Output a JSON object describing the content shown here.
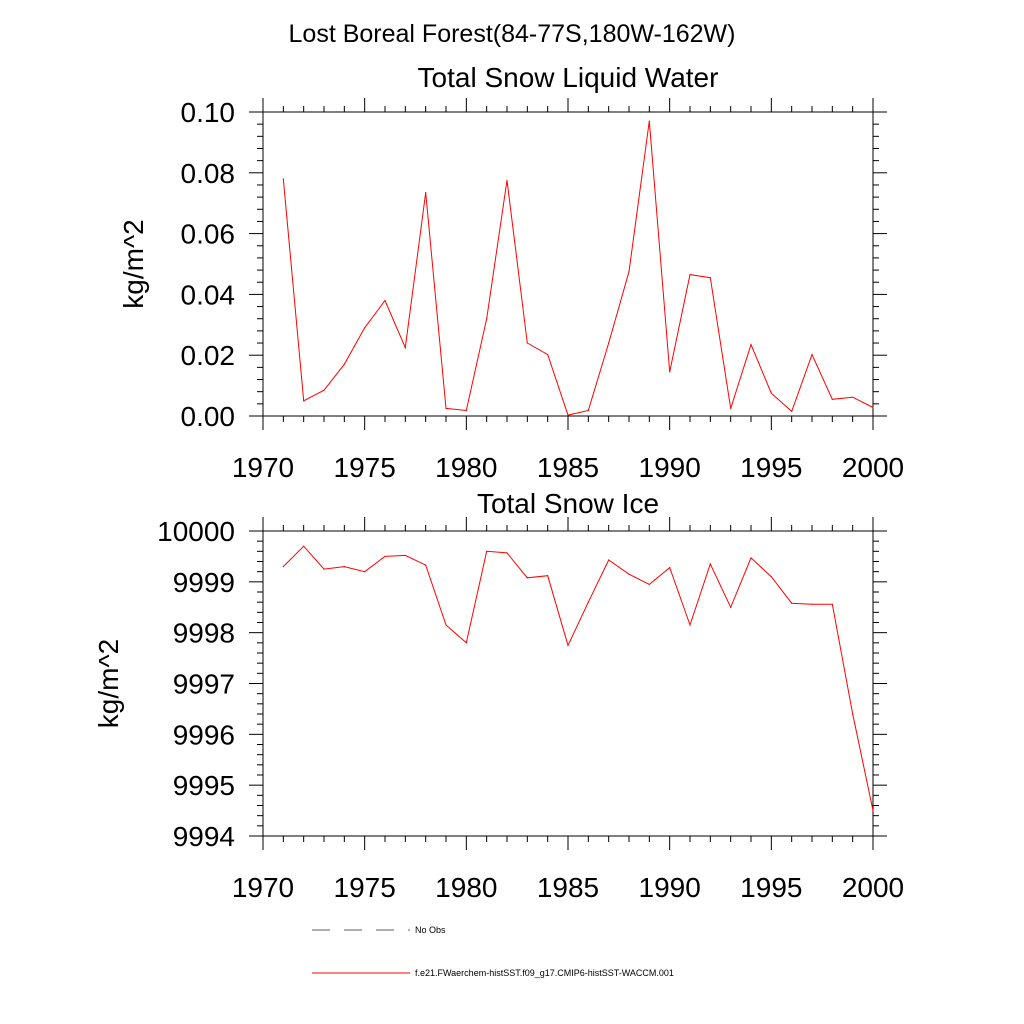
{
  "page_title": "Lost Boreal Forest(84-77S,180W-162W)",
  "legend": {
    "obs_label": "No Obs",
    "model_label": "f.e21.FWaerchem-histSST.f09_g17.CMIP6-histSST-WACCM.001"
  },
  "colors": {
    "model": "#ff0000",
    "obs": "#5a5a8a",
    "axis": "#000000"
  },
  "chart_data": [
    {
      "type": "line",
      "title": "Total Snow Liquid Water",
      "ylabel": "kg/m^2",
      "xlabel": "",
      "xlim": [
        1970,
        2000
      ],
      "ylim": [
        0,
        0.1
      ],
      "xticks": [
        1970,
        1975,
        1980,
        1985,
        1990,
        1995,
        2000
      ],
      "xtick_labels": [
        "1970",
        "1975",
        "1980",
        "1985",
        "1990",
        "1995",
        "2000"
      ],
      "yticks": [
        0,
        0.02,
        0.04,
        0.06,
        0.08,
        0.1
      ],
      "ytick_labels": [
        "0.00",
        "0.02",
        "0.04",
        "0.06",
        "0.08",
        "0.10"
      ],
      "grid": false,
      "series": [
        {
          "name": "f.e21.FWaerchem-histSST.f09_g17.CMIP6-histSST-WACCM.001",
          "x": [
            1971,
            1972,
            1973,
            1974,
            1975,
            1976,
            1977,
            1978,
            1979,
            1980,
            1981,
            1982,
            1983,
            1984,
            1985,
            1986,
            1987,
            1988,
            1989,
            1990,
            1991,
            1992,
            1993,
            1994,
            1995,
            1996,
            1997,
            1998,
            1999,
            2000
          ],
          "y": [
            0.078,
            0.005,
            0.0085,
            0.017,
            0.029,
            0.038,
            0.0225,
            0.0735,
            0.0025,
            0.0018,
            0.032,
            0.0775,
            0.024,
            0.0202,
            0.0003,
            0.0018,
            0.024,
            0.0475,
            0.097,
            0.0145,
            0.0465,
            0.0455,
            0.0025,
            0.0235,
            0.0075,
            0.0015,
            0.0202,
            0.0055,
            0.0062,
            0.0028
          ]
        }
      ]
    },
    {
      "type": "line",
      "title": "Total Snow Ice",
      "ylabel": "kg/m^2",
      "xlabel": "",
      "xlim": [
        1970,
        2000
      ],
      "ylim": [
        9994,
        10000
      ],
      "xticks": [
        1970,
        1975,
        1980,
        1985,
        1990,
        1995,
        2000
      ],
      "xtick_labels": [
        "1970",
        "1975",
        "1980",
        "1985",
        "1990",
        "1995",
        "2000"
      ],
      "yticks": [
        9994,
        9995,
        9996,
        9997,
        9998,
        9999,
        10000
      ],
      "ytick_labels": [
        "9994",
        "9995",
        "9996",
        "9997",
        "9998",
        "9999",
        "10000"
      ],
      "grid": false,
      "series": [
        {
          "name": "f.e21.FWaerchem-histSST.f09_g17.CMIP6-histSST-WACCM.001",
          "x": [
            1971,
            1972,
            1973,
            1974,
            1975,
            1976,
            1977,
            1978,
            1979,
            1980,
            1981,
            1982,
            1983,
            1984,
            1985,
            1986,
            1987,
            1988,
            1989,
            1990,
            1991,
            1992,
            1993,
            1994,
            1995,
            1996,
            1997,
            1998,
            1999,
            2000
          ],
          "y": [
            9999.3,
            9999.7,
            9999.25,
            9999.3,
            9999.2,
            9999.5,
            9999.52,
            9999.33,
            9998.15,
            9997.8,
            9999.6,
            9999.57,
            9999.08,
            9999.12,
            9997.75,
            9998.6,
            9999.43,
            9999.15,
            9998.95,
            9999.28,
            9998.15,
            9999.35,
            9998.5,
            9999.47,
            9999.1,
            9998.58,
            9998.56,
            9998.56,
            9996.4,
            9994.5
          ]
        }
      ]
    }
  ]
}
